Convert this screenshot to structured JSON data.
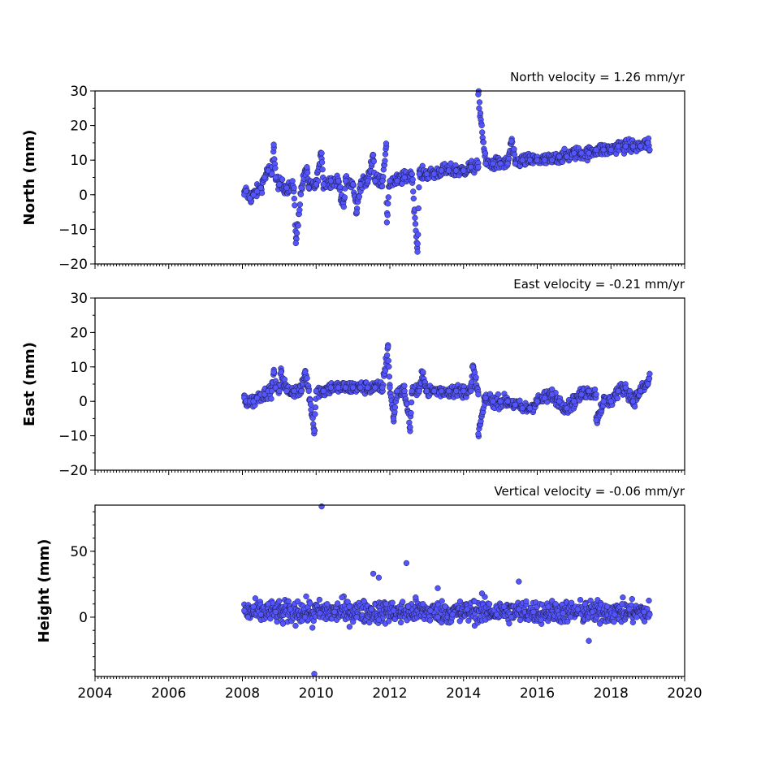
{
  "chart_data": [
    {
      "type": "scatter",
      "title": "North velocity = 1.26 mm/yr",
      "ylabel": "North (mm)",
      "xlabel": "",
      "xlim": [
        2004,
        2020
      ],
      "ylim": [
        -20,
        30
      ],
      "yticks": [
        -20,
        -10,
        0,
        10,
        20,
        30
      ],
      "xticks": [
        2004,
        2006,
        2008,
        2010,
        2012,
        2014,
        2016,
        2018,
        2020
      ],
      "x_tick_labels_shown": false,
      "grid": false,
      "marker_color": "#5555ff",
      "series": [
        {
          "x": [
            2008.05,
            2008.1,
            2008.2,
            2008.3,
            2008.4,
            2008.5,
            2008.6,
            2008.7,
            2008.8,
            2008.9,
            2009.0,
            2009.2,
            2009.4,
            2009.6,
            2009.8,
            2010.0,
            2010.2,
            2010.4,
            2010.6,
            2010.8,
            2011.0,
            2011.2,
            2011.4,
            2011.6,
            2011.8,
            2012.0,
            2012.2,
            2012.4,
            2012.6,
            2012.8,
            2013.0,
            2013.2,
            2013.4,
            2013.6,
            2013.8,
            2014.0,
            2014.2,
            2014.4,
            2014.6,
            2014.8,
            2015.0,
            2015.2,
            2015.4,
            2015.6,
            2015.8,
            2016.0,
            2016.2,
            2016.4,
            2016.6,
            2016.8,
            2017.0,
            2017.2,
            2017.4,
            2017.6,
            2017.8,
            2018.0,
            2018.2,
            2018.4,
            2018.6,
            2018.8,
            2019.0,
            2019.05,
            2008.85,
            2009.45,
            2009.75,
            2010.15,
            2010.75,
            2011.1,
            2011.55,
            2011.9,
            2011.92,
            2012.75,
            2014.4,
            2015.3
          ],
          "y": [
            0,
            1,
            -1,
            0,
            1,
            2,
            5,
            7,
            6,
            5,
            3,
            2,
            2,
            2,
            2,
            3,
            3,
            4,
            4,
            4,
            3,
            3,
            4,
            4,
            4,
            4,
            4,
            5,
            6,
            6,
            6,
            6,
            7,
            7,
            7,
            7,
            8,
            8,
            9,
            9,
            9,
            9,
            9,
            10,
            10,
            10,
            10,
            10,
            11,
            11,
            12,
            12,
            12,
            13,
            13,
            13,
            14,
            14,
            14,
            14,
            15,
            13,
            14.5,
            -14,
            8,
            12,
            -3.5,
            -5,
            11.5,
            14.8,
            -8,
            -16.5,
            29,
            15.5
          ]
        }
      ]
    },
    {
      "type": "scatter",
      "title": "East velocity = -0.21 mm/yr",
      "ylabel": "East (mm)",
      "xlabel": "",
      "xlim": [
        2004,
        2020
      ],
      "ylim": [
        -20,
        30
      ],
      "yticks": [
        -20,
        -10,
        0,
        10,
        20,
        30
      ],
      "xticks": [
        2004,
        2006,
        2008,
        2010,
        2012,
        2014,
        2016,
        2018,
        2020
      ],
      "x_tick_labels_shown": false,
      "grid": false,
      "marker_color": "#5555ff",
      "series": [
        {
          "x": [
            2008.05,
            2008.1,
            2008.2,
            2008.3,
            2008.4,
            2008.5,
            2008.6,
            2008.7,
            2008.8,
            2008.9,
            2009.0,
            2009.2,
            2009.4,
            2009.6,
            2009.8,
            2010.0,
            2010.2,
            2010.4,
            2010.6,
            2010.8,
            2011.0,
            2011.2,
            2011.4,
            2011.6,
            2011.8,
            2012.0,
            2012.2,
            2012.4,
            2012.6,
            2012.8,
            2013.0,
            2013.2,
            2013.4,
            2013.6,
            2013.8,
            2014.0,
            2014.2,
            2014.4,
            2014.6,
            2014.8,
            2015.0,
            2015.2,
            2015.4,
            2015.6,
            2015.8,
            2016.0,
            2016.2,
            2016.4,
            2016.6,
            2016.8,
            2017.0,
            2017.2,
            2017.4,
            2017.6,
            2017.8,
            2018.0,
            2018.2,
            2018.4,
            2018.6,
            2018.8,
            2019.0,
            2019.05,
            2008.85,
            2009.05,
            2009.7,
            2009.95,
            2011.95,
            2012.1,
            2012.55,
            2012.9,
            2014.25,
            2014.4,
            2017.6
          ],
          "y": [
            1,
            0,
            0,
            0,
            1,
            2,
            2,
            3,
            3,
            4,
            3,
            3,
            3,
            3,
            3,
            3,
            3,
            4,
            4,
            4,
            4,
            4,
            4,
            4,
            4,
            4,
            3,
            3,
            3,
            3,
            3,
            3,
            3,
            3,
            3,
            3,
            3,
            2,
            1,
            0,
            0,
            0,
            -1,
            -2,
            -2,
            0,
            1,
            2,
            0,
            -2,
            0,
            2,
            3,
            2,
            0,
            0,
            3,
            4,
            0,
            3,
            5,
            8,
            8.5,
            8.5,
            8.5,
            -8.5,
            15.8,
            -5,
            -7.5,
            8.5,
            10,
            -9.5,
            -5.5
          ]
        }
      ]
    },
    {
      "type": "scatter",
      "title": "Vertical velocity = -0.06 mm/yr",
      "ylabel": "Height (mm)",
      "xlabel": "",
      "xlim": [
        2004,
        2020
      ],
      "ylim": [
        -45,
        85
      ],
      "yticks": [
        0,
        50
      ],
      "xticks": [
        2004,
        2006,
        2008,
        2010,
        2012,
        2014,
        2016,
        2018,
        2020
      ],
      "x_tick_labels": [
        "2004",
        "2006",
        "2008",
        "2010",
        "2012",
        "2014",
        "2016",
        "2018",
        "2020"
      ],
      "x_tick_labels_shown": true,
      "grid": false,
      "marker_color": "#5555ff",
      "series": [
        {
          "x": [
            2008.05,
            2008.15,
            2008.3,
            2008.5,
            2008.7,
            2008.9,
            2009.1,
            2009.3,
            2009.5,
            2009.7,
            2009.9,
            2010.1,
            2010.3,
            2010.5,
            2010.7,
            2010.9,
            2011.1,
            2011.3,
            2011.5,
            2011.7,
            2011.9,
            2012.1,
            2012.3,
            2012.5,
            2012.7,
            2012.9,
            2013.1,
            2013.3,
            2013.5,
            2013.7,
            2013.9,
            2014.1,
            2014.3,
            2014.5,
            2014.7,
            2014.9,
            2015.1,
            2015.3,
            2015.5,
            2015.7,
            2015.9,
            2016.1,
            2016.3,
            2016.5,
            2016.7,
            2016.9,
            2017.1,
            2017.3,
            2017.5,
            2017.7,
            2017.9,
            2018.1,
            2018.3,
            2018.5,
            2018.7,
            2018.9,
            2019.05,
            2010.15,
            2009.95,
            2012.45,
            2011.55,
            2011.7,
            2015.5,
            2013.3,
            2017.4
          ],
          "y": [
            5,
            0,
            8,
            2,
            10,
            4,
            -5,
            6,
            12,
            0,
            -8,
            3,
            10,
            4,
            15,
            8,
            0,
            12,
            6,
            -2,
            10,
            5,
            -4,
            8,
            15,
            10,
            5,
            0,
            8,
            2,
            -3,
            6,
            12,
            18,
            10,
            2,
            8,
            0,
            6,
            12,
            4,
            -2,
            8,
            10,
            3,
            0,
            6,
            10,
            4,
            -5,
            8,
            2,
            10,
            6,
            0,
            4,
            2,
            84,
            -43,
            41,
            33,
            30,
            27,
            22,
            -18
          ]
        }
      ]
    }
  ]
}
